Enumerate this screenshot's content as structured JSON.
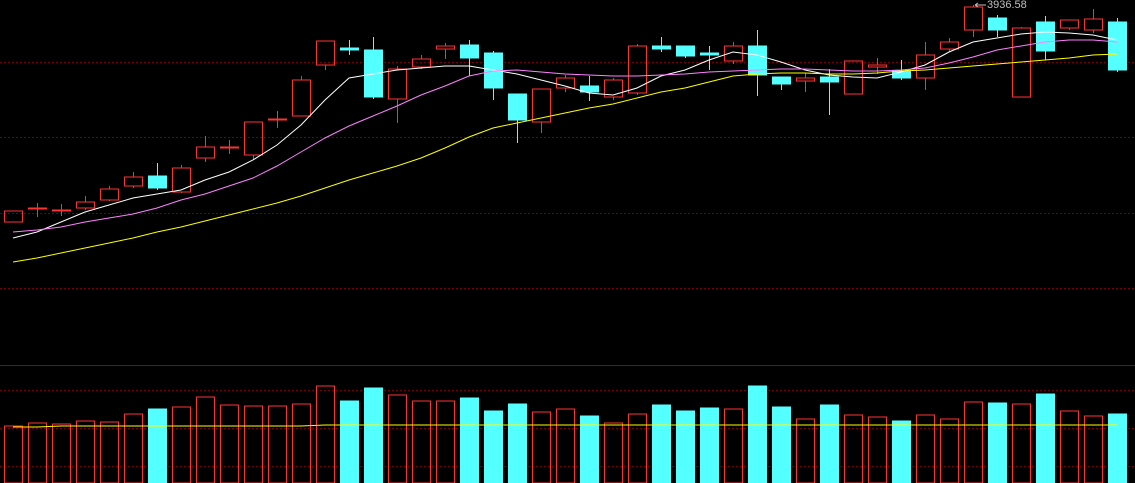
{
  "chart_data": [
    {
      "type": "candlestick",
      "up_color": "#ff3232",
      "down_color": "#54ffff",
      "ylim": [
        3036.58,
        3949.08
      ],
      "open": [
        3394.08,
        3426.58,
        3421.58,
        3429.08,
        3449.08,
        3484.08,
        3509.08,
        3469.08,
        3554.08,
        3579.08,
        3561.58,
        3649.08,
        3659.08,
        3786.58,
        3829.08,
        3824.08,
        3701.58,
        3781.58,
        3826.58,
        3836.58,
        3816.58,
        3714.08,
        3644.08,
        3729.08,
        3734.08,
        3706.58,
        3716.58,
        3834.08,
        3834.08,
        3816.58,
        3796.58,
        3834.08,
        3756.58,
        3746.58,
        3756.58,
        3714.08,
        3781.58,
        3771.58,
        3754.08,
        3826.58,
        3874.08,
        3904.08,
        3706.58,
        3894.08,
        3879.08,
        3874.08,
        3894.08
      ],
      "high": [
        3421.58,
        3441.58,
        3439.08,
        3459.08,
        3484.08,
        3519.08,
        3541.58,
        3536.58,
        3609.08,
        3599.08,
        3644.08,
        3671.58,
        3759.08,
        3846.58,
        3849.08,
        3856.58,
        3784.08,
        3811.58,
        3841.58,
        3849.08,
        3821.58,
        3714.08,
        3726.58,
        3761.58,
        3759.08,
        3754.08,
        3839.08,
        3856.58,
        3834.08,
        3834.08,
        3844.08,
        3874.08,
        3756.58,
        3766.58,
        3776.58,
        3796.58,
        3804.08,
        3799.08,
        3844.08,
        3854.08,
        3936.58,
        3911.58,
        3881.58,
        3909.08,
        3899.08,
        3926.58,
        3904.08
      ],
      "low": [
        3394.08,
        3406.58,
        3409.08,
        3424.08,
        3446.58,
        3479.08,
        3474.08,
        3466.58,
        3544.08,
        3564.08,
        3549.08,
        3629.08,
        3659.08,
        3774.08,
        3811.58,
        3701.58,
        3641.58,
        3776.58,
        3801.58,
        3759.08,
        3699.08,
        3591.58,
        3616.58,
        3719.08,
        3696.58,
        3699.08,
        3711.58,
        3819.08,
        3804.08,
        3774.08,
        3789.08,
        3709.08,
        3724.08,
        3719.08,
        3661.58,
        3714.08,
        3764.08,
        3749.08,
        3724.08,
        3819.08,
        3856.58,
        3856.58,
        3706.58,
        3799.08,
        3874.08,
        3866.58,
        3769.08
      ],
      "close": [
        3421.58,
        3429.08,
        3424.08,
        3444.08,
        3476.58,
        3506.58,
        3479.08,
        3529.08,
        3581.58,
        3581.58,
        3644.08,
        3651.58,
        3749.08,
        3846.58,
        3824.08,
        3706.58,
        3776.58,
        3801.58,
        3834.08,
        3804.08,
        3729.08,
        3649.08,
        3726.58,
        3754.08,
        3719.08,
        3749.08,
        3834.08,
        3826.58,
        3809.08,
        3811.58,
        3834.08,
        3761.58,
        3739.08,
        3754.08,
        3744.08,
        3796.58,
        3786.58,
        3754.08,
        3811.58,
        3844.08,
        3931.58,
        3874.08,
        3879.08,
        3821.58,
        3899.08,
        3901.58,
        3774.08
      ],
      "series": [
        {
          "color": "#ffffff",
          "values": [
            3354.08,
            3369.08,
            3394.08,
            3419.08,
            3436.58,
            3454.08,
            3464.08,
            3474.08,
            3499.08,
            3519.08,
            3549.08,
            3586.58,
            3636.58,
            3699.08,
            3754.08,
            3764.08,
            3774.08,
            3779.08,
            3784.08,
            3784.08,
            3774.08,
            3764.08,
            3749.08,
            3734.08,
            3716.58,
            3711.58,
            3729.08,
            3759.08,
            3774.08,
            3799.08,
            3819.08,
            3811.58,
            3794.08,
            3774.08,
            3761.58,
            3756.58,
            3754.08,
            3769.08,
            3786.58,
            3819.08,
            3844.08,
            3854.08,
            3864.08,
            3869.08,
            3866.58,
            3861.58,
            3849.08
          ]
        },
        {
          "color": "#ff80ff",
          "values": [
            3369.08,
            3374.08,
            3381.58,
            3394.08,
            3404.08,
            3414.08,
            3429.08,
            3449.08,
            3464.08,
            3484.08,
            3504.08,
            3534.08,
            3569.08,
            3604.08,
            3634.08,
            3659.08,
            3684.08,
            3711.58,
            3734.08,
            3759.08,
            3771.58,
            3774.08,
            3769.08,
            3764.08,
            3761.58,
            3759.08,
            3759.08,
            3761.58,
            3764.08,
            3769.08,
            3771.58,
            3774.08,
            3776.58,
            3776.58,
            3774.08,
            3771.58,
            3771.58,
            3774.08,
            3779.08,
            3791.58,
            3806.58,
            3824.08,
            3834.08,
            3844.08,
            3849.08,
            3849.08,
            3844.08
          ]
        },
        {
          "color": "#ffff00",
          "values": [
            3294.08,
            3304.08,
            3316.58,
            3329.08,
            3341.58,
            3354.08,
            3369.08,
            3381.58,
            3396.58,
            3411.58,
            3426.58,
            3441.58,
            3459.08,
            3479.08,
            3499.08,
            3516.58,
            3534.08,
            3554.08,
            3579.08,
            3606.58,
            3629.08,
            3641.58,
            3654.08,
            3666.58,
            3679.08,
            3689.08,
            3704.08,
            3719.08,
            3729.08,
            3744.08,
            3759.08,
            3764.08,
            3766.58,
            3766.58,
            3764.08,
            3764.08,
            3766.58,
            3771.58,
            3774.08,
            3779.08,
            3784.08,
            3789.08,
            3794.08,
            3799.08,
            3804.08,
            3811.58,
            3814.08
          ]
        }
      ]
    },
    {
      "type": "bar",
      "ylim": [
        0,
        118
      ],
      "values": [
        57,
        60,
        59,
        62,
        61,
        69,
        74,
        76,
        86,
        78,
        77,
        77,
        79,
        97,
        82,
        95,
        88,
        82,
        82,
        85,
        72,
        79,
        71,
        74,
        67,
        60,
        69,
        78,
        72,
        75,
        74,
        97,
        76,
        64,
        78,
        68,
        66,
        62,
        68,
        64,
        81,
        80,
        79,
        89,
        72,
        67,
        69
      ],
      "series": [
        {
          "color": "#ffff00",
          "values": [
            56,
            56,
            57,
            57,
            57,
            57,
            57,
            57,
            57,
            57,
            57,
            57,
            57,
            58,
            58,
            58,
            58,
            58,
            58,
            58,
            58,
            58,
            58,
            58,
            58,
            58,
            58,
            58,
            58,
            58,
            58,
            58,
            58,
            58,
            58,
            58,
            58,
            58,
            58,
            58,
            58,
            58,
            58,
            58,
            58,
            58,
            58
          ]
        }
      ]
    }
  ]
}
